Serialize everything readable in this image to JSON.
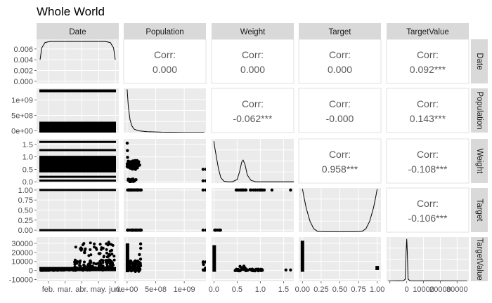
{
  "title": "Whole World",
  "variables": [
    "Date",
    "Population",
    "Weight",
    "Target",
    "TargetValue"
  ],
  "colors": {
    "panel": "#ebebeb",
    "strip": "#d9d9d9",
    "grid": "#ffffff",
    "points": "#000000",
    "text": "#595959"
  },
  "chart_data": {
    "type": "scatter",
    "kind": "pairs-plot (ggpairs)",
    "title": "Whole World",
    "variables": [
      "Date",
      "Population",
      "Weight",
      "Target",
      "TargetValue"
    ],
    "correlation_label": "Corr:",
    "correlations": [
      {
        "row": "Date",
        "col": "Population",
        "text": "0.000"
      },
      {
        "row": "Date",
        "col": "Weight",
        "text": "0.000"
      },
      {
        "row": "Date",
        "col": "Target",
        "text": "0.000"
      },
      {
        "row": "Date",
        "col": "TargetValue",
        "text": "0.092***"
      },
      {
        "row": "Population",
        "col": "Weight",
        "text": "-0.062***"
      },
      {
        "row": "Population",
        "col": "Target",
        "text": "-0.000"
      },
      {
        "row": "Population",
        "col": "TargetValue",
        "text": "0.143***"
      },
      {
        "row": "Weight",
        "col": "Target",
        "text": "0.958***"
      },
      {
        "row": "Weight",
        "col": "TargetValue",
        "text": "-0.108***"
      },
      {
        "row": "Target",
        "col": "TargetValue",
        "text": "-0.106***"
      }
    ],
    "axes": {
      "Date": {
        "ticks": [
          "feb.",
          "mar.",
          "abr.",
          "may.",
          "jun."
        ],
        "range": [
          0,
          4.5
        ]
      },
      "Population": {
        "range": [
          -60000000.0,
          1380000000.0
        ],
        "x_ticks": [
          0,
          500000000.0,
          1000000000.0
        ],
        "x_labels": [
          "0e+00",
          "5e+08",
          "1e+09"
        ],
        "y_ticks": [
          0,
          500000000.0,
          1000000000.0
        ],
        "y_labels": [
          "0e+00",
          "5e+08",
          "1e+09"
        ]
      },
      "Weight": {
        "range": [
          -0.05,
          1.72
        ],
        "ticks": [
          0,
          0.5,
          1,
          1.5
        ],
        "x_labels": [
          "0.0",
          "0.5",
          "1.0",
          "1.5"
        ],
        "y_labels": [
          "0.0",
          "0.5",
          "1.0",
          "1.5"
        ]
      },
      "Target": {
        "range": [
          -0.05,
          1.05
        ],
        "ticks": [
          0,
          0.25,
          0.5,
          0.75,
          1
        ],
        "labels": [
          "0.00",
          "0.25",
          "0.50",
          "0.75",
          "1.00"
        ]
      },
      "TargetValue": {
        "range": [
          -12000,
          37000
        ],
        "ticks": [
          -10000,
          0,
          10000,
          20000,
          30000
        ],
        "x_labels": [
          "",
          "0",
          "10000",
          "20000",
          "30000"
        ],
        "y_labels": [
          "-10000",
          "0",
          "10000",
          "20000",
          "30000"
        ]
      }
    },
    "date_density_y": {
      "ticks": [
        0,
        0.002,
        0.004,
        0.006
      ],
      "labels": [
        "0.000",
        "0.002",
        "0.004",
        "0.006"
      ],
      "range": [
        -0.0004,
        0.0078
      ]
    },
    "density_curves": {
      "Date": {
        "x": [
          0,
          0.1,
          0.3,
          0.6,
          1,
          2,
          3,
          3.9,
          4.2,
          4.4,
          4.5
        ],
        "y": [
          0.004,
          0.0062,
          0.0072,
          0.0074,
          0.0074,
          0.0074,
          0.0074,
          0.0074,
          0.0072,
          0.0062,
          0.004
        ]
      },
      "Population": {
        "x": [
          0,
          20000000.0,
          50000000.0,
          80000000.0,
          120000000.0,
          200000000.0,
          350000000.0,
          600000000.0,
          1000000000.0,
          1350000000.0
        ],
        "y": [
          0.98,
          0.6,
          0.3,
          0.16,
          0.08,
          0.04,
          0.02,
          0.01,
          0.005,
          0.004
        ]
      },
      "Weight": {
        "x": [
          0,
          0.02,
          0.06,
          0.1,
          0.15,
          0.22,
          0.3,
          0.4,
          0.5,
          0.55,
          0.6,
          0.63,
          0.67,
          0.72,
          0.8,
          0.9,
          1.0,
          1.2,
          1.72
        ],
        "y": [
          0.95,
          0.8,
          0.55,
          0.32,
          0.12,
          0.04,
          0.03,
          0.03,
          0.08,
          0.25,
          0.48,
          0.52,
          0.42,
          0.18,
          0.06,
          0.03,
          0.03,
          0.03,
          0.03
        ]
      },
      "Target": {
        "x": [
          0,
          0.02,
          0.05,
          0.1,
          0.15,
          0.2,
          0.3,
          0.5,
          0.7,
          0.8,
          0.85,
          0.9,
          0.95,
          0.98,
          1.0
        ],
        "y": [
          0.98,
          0.8,
          0.55,
          0.25,
          0.08,
          0.02,
          0.01,
          0.01,
          0.01,
          0.02,
          0.08,
          0.25,
          0.55,
          0.8,
          0.98
        ]
      },
      "TargetValue": {
        "x": [
          -11000,
          -2000,
          -800,
          -300,
          0,
          300,
          800,
          2000,
          36000
        ],
        "y": [
          0.005,
          0.01,
          0.05,
          0.7,
          0.96,
          0.7,
          0.05,
          0.01,
          0.005
        ]
      }
    }
  }
}
